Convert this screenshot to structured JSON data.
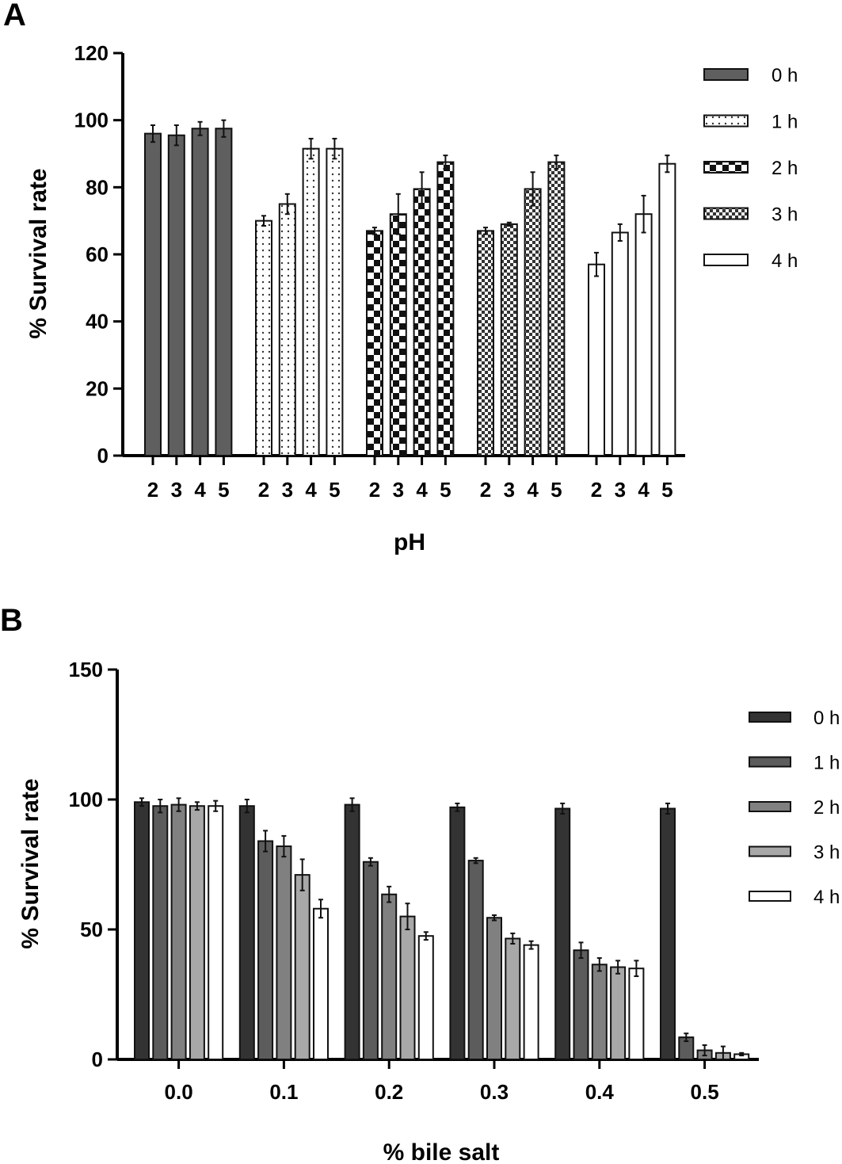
{
  "panels": [
    {
      "letter": "A",
      "chart_data": {
        "type": "bar",
        "xlabel": "pH",
        "ylabel": "% Survival  rate",
        "ylim": [
          0,
          120
        ],
        "yticks": [
          0,
          20,
          40,
          60,
          80,
          100,
          120
        ],
        "legend_position": "right",
        "groups": [
          {
            "series": "0 h",
            "fill": "#5f5f5f",
            "pattern": "solid",
            "categories": [
              "2",
              "3",
              "4",
              "5"
            ],
            "values": [
              96,
              95.5,
              97.5,
              97.5
            ],
            "errors": [
              2.5,
              3,
              2,
              2.5
            ]
          },
          {
            "series": "1 h",
            "fill": "#ffffff",
            "pattern": "dots",
            "categories": [
              "2",
              "3",
              "4",
              "5"
            ],
            "values": [
              70,
              75,
              91.5,
              91.5
            ],
            "errors": [
              1.5,
              3,
              3,
              3
            ]
          },
          {
            "series": "2 h",
            "fill": "#000000",
            "pattern": "checker-large",
            "categories": [
              "2",
              "3",
              "4",
              "5"
            ],
            "values": [
              67,
              72,
              79.5,
              87.5
            ],
            "errors": [
              1,
              6,
              5,
              2
            ]
          },
          {
            "series": "3 h",
            "fill": "#555555",
            "pattern": "checker-small",
            "categories": [
              "2",
              "3",
              "4",
              "5"
            ],
            "values": [
              67,
              69,
              79.5,
              87.5
            ],
            "errors": [
              1,
              0.5,
              5,
              2
            ]
          },
          {
            "series": "4 h",
            "fill": "#ffffff",
            "pattern": "solid",
            "categories": [
              "2",
              "3",
              "4",
              "5"
            ],
            "values": [
              57,
              66.5,
              72,
              87
            ],
            "errors": [
              3.5,
              2.5,
              5.5,
              2.5
            ]
          }
        ],
        "legend": [
          "0 h",
          "1 h",
          "2 h",
          "3 h",
          "4 h"
        ]
      }
    },
    {
      "letter": "B",
      "chart_data": {
        "type": "bar",
        "xlabel": "% bile salt",
        "ylabel": "% Survival  rate",
        "ylim": [
          0,
          150
        ],
        "yticks": [
          0,
          50,
          100,
          150
        ],
        "legend_position": "right",
        "categories": [
          "0.0",
          "0.1",
          "0.2",
          "0.3",
          "0.4",
          "0.5"
        ],
        "series": [
          {
            "name": "0 h",
            "color": "#333333",
            "values": [
              99,
              97.5,
              98,
              97,
              96.5,
              96.5
            ],
            "errors": [
              1.5,
              2.5,
              2.5,
              1.5,
              2,
              2
            ]
          },
          {
            "name": "1 h",
            "color": "#5c5c5c",
            "values": [
              97.5,
              84,
              76,
              76.5,
              42,
              8.5
            ],
            "errors": [
              2.5,
              4,
              1.5,
              1,
              3,
              1.5
            ]
          },
          {
            "name": "2 h",
            "color": "#808080",
            "values": [
              98,
              82,
              63.5,
              54.5,
              36.5,
              3.5
            ],
            "errors": [
              2.5,
              4,
              3,
              1,
              2.5,
              2
            ]
          },
          {
            "name": "3 h",
            "color": "#a8a8a8",
            "values": [
              97.5,
              71,
              55,
              46.5,
              35.5,
              2.5
            ],
            "errors": [
              1.5,
              6,
              5,
              2,
              2.5,
              2.5
            ]
          },
          {
            "name": "4 h",
            "color": "#ffffff",
            "values": [
              97.5,
              58,
              47.5,
              44,
              35,
              2
            ],
            "errors": [
              2,
              3.5,
              1.5,
              1.5,
              3,
              0.5
            ]
          }
        ],
        "legend": [
          "0 h",
          "1 h",
          "2 h",
          "3 h",
          "4 h"
        ]
      }
    }
  ]
}
